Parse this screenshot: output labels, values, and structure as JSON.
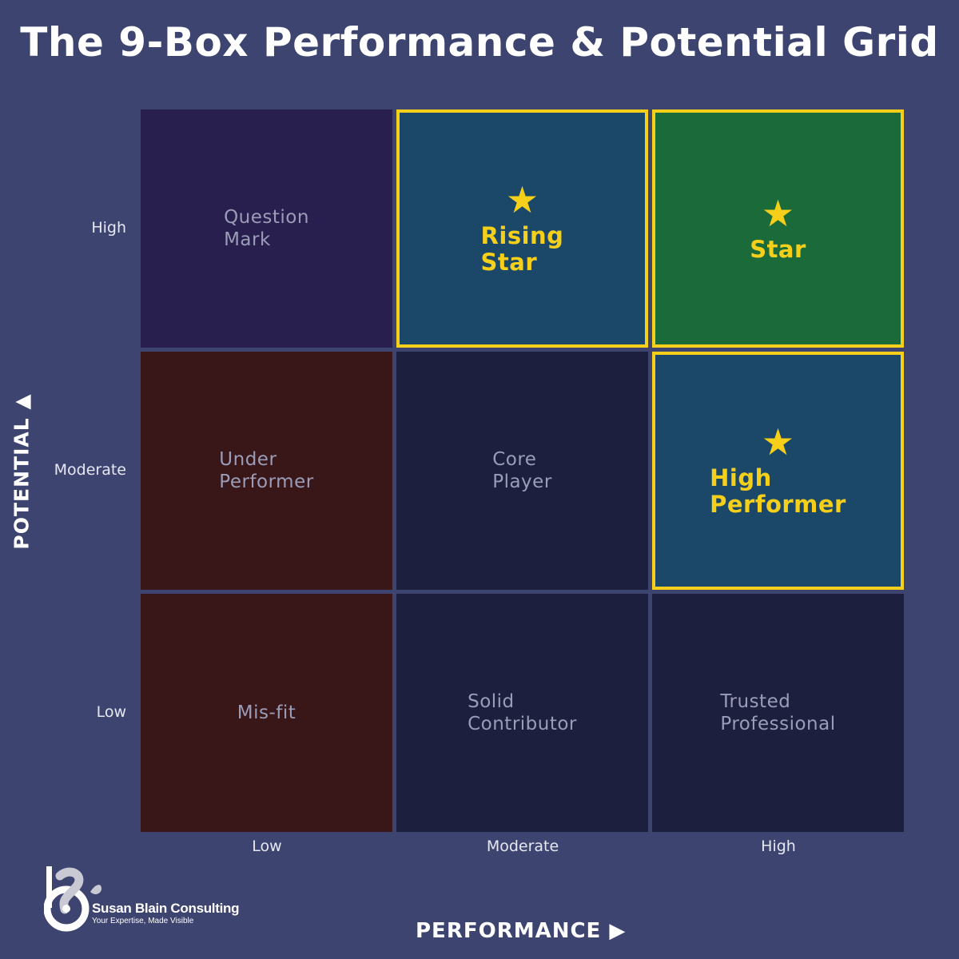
{
  "title": "The 9-Box Performance & Potential Grid",
  "axes": {
    "y_title": "POTENTIAL ▲",
    "x_title": "PERFORMANCE ▶",
    "y_ticks": [
      "High",
      "Moderate",
      "Low"
    ],
    "x_ticks": [
      "Low",
      "Moderate",
      "High"
    ]
  },
  "cells": [
    {
      "label": "Question\nMark",
      "potential": "High",
      "performance": "Low",
      "color": "#281f4e",
      "highlight": false,
      "star": ""
    },
    {
      "label": "Rising\nStar",
      "potential": "High",
      "performance": "Moderate",
      "color": "#1b4868",
      "highlight": true,
      "star": "★"
    },
    {
      "label": "Star",
      "potential": "High",
      "performance": "High",
      "color": "#1b6b3a",
      "highlight": true,
      "star": "★"
    },
    {
      "label": "Under\nPerformer",
      "potential": "Moderate",
      "performance": "Low",
      "color": "#391718",
      "highlight": false,
      "star": ""
    },
    {
      "label": "Core\nPlayer",
      "potential": "Moderate",
      "performance": "Moderate",
      "color": "#1c1f3d",
      "highlight": false,
      "star": ""
    },
    {
      "label": "High\nPerformer",
      "potential": "Moderate",
      "performance": "High",
      "color": "#1b4868",
      "highlight": true,
      "star": "★"
    },
    {
      "label": "Mis-fit",
      "potential": "Low",
      "performance": "Low",
      "color": "#391718",
      "highlight": false,
      "star": ""
    },
    {
      "label": "Solid\nContributor",
      "potential": "Low",
      "performance": "Moderate",
      "color": "#1c1f3d",
      "highlight": false,
      "star": ""
    },
    {
      "label": "Trusted\nProfessional",
      "potential": "Low",
      "performance": "High",
      "color": "#1c1f3d",
      "highlight": false,
      "star": ""
    }
  ],
  "logo": {
    "name": "Susan Blain Consulting",
    "tagline": "Your Expertise, Made Visible"
  },
  "colors": {
    "background": "#3d4470",
    "highlight_border": "#f6cf1a"
  }
}
